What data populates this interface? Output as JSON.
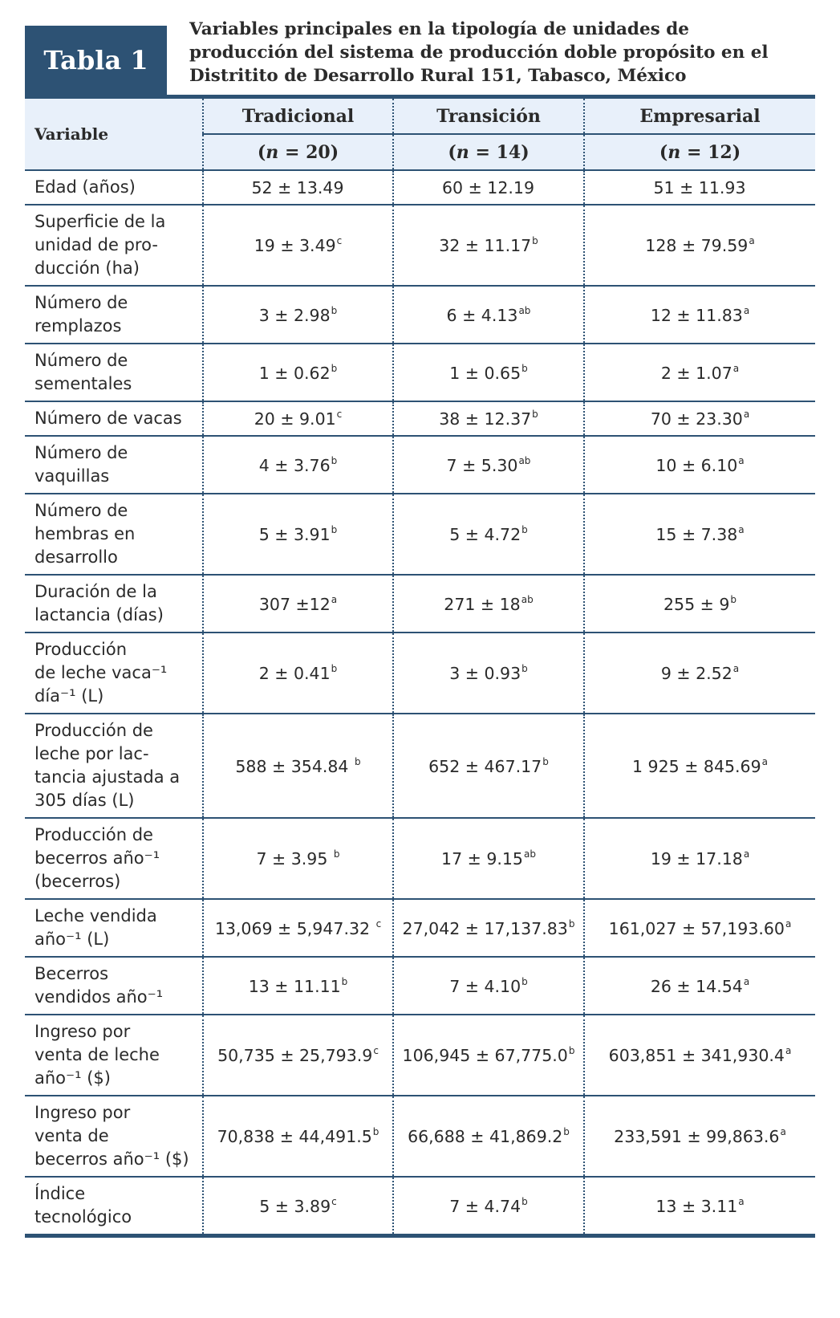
{
  "table_label": "Tabla 1",
  "caption_lines": [
    "Variables principales en la tipología de unidades de",
    "producción del sistema de producción doble propósito en el",
    "Distritito de Desarrollo Rural 151, Tabasco, México"
  ],
  "header": {
    "variable": "Variable",
    "groups": [
      {
        "name": "Tradicional",
        "n": "20"
      },
      {
        "name": "Transición",
        "n": "14"
      },
      {
        "name": "Empresarial",
        "n": "12"
      }
    ]
  },
  "rows": [
    {
      "lines": [
        "Edad (años)"
      ],
      "vals": [
        [
          "52 ± 13.49",
          ""
        ],
        [
          "60 ± 12.19",
          ""
        ],
        [
          "51 ± 11.93",
          ""
        ]
      ]
    },
    {
      "lines": [
        "Superficie de la",
        "unidad de pro-",
        "ducción (ha)"
      ],
      "vals": [
        [
          "19 ± 3.49",
          "c"
        ],
        [
          "32 ± 11.17",
          "b"
        ],
        [
          "128 ± 79.59",
          "a"
        ]
      ]
    },
    {
      "lines": [
        "Número de",
        "remplazos"
      ],
      "vals": [
        [
          "3 ± 2.98",
          "b"
        ],
        [
          "6 ± 4.13",
          "ab"
        ],
        [
          "12 ± 11.83",
          "a"
        ]
      ]
    },
    {
      "lines": [
        "Número de",
        "sementales"
      ],
      "vals": [
        [
          "1 ± 0.62",
          "b"
        ],
        [
          "1 ± 0.65",
          "b"
        ],
        [
          "2 ± 1.07",
          "a"
        ]
      ]
    },
    {
      "lines": [
        "Número de vacas"
      ],
      "vals": [
        [
          "20 ± 9.01",
          "c"
        ],
        [
          "38 ± 12.37",
          "b"
        ],
        [
          "70 ± 23.30",
          "a"
        ]
      ]
    },
    {
      "lines": [
        "Número de",
        "vaquillas"
      ],
      "vals": [
        [
          "4 ± 3.76",
          "b"
        ],
        [
          "7 ± 5.30",
          "ab"
        ],
        [
          "10 ± 6.10",
          "a"
        ]
      ]
    },
    {
      "lines": [
        "Número de",
        "hembras en",
        "desarrollo"
      ],
      "vals": [
        [
          "5 ± 3.91",
          "b"
        ],
        [
          "5 ± 4.72",
          "b"
        ],
        [
          "15 ± 7.38",
          "a"
        ]
      ]
    },
    {
      "lines": [
        "Duración de la",
        "lactancia (días)"
      ],
      "vals": [
        [
          "307 ±12",
          "a"
        ],
        [
          "271 ± 18",
          "ab"
        ],
        [
          "255 ± 9",
          "b"
        ]
      ]
    },
    {
      "lines": [
        "Producción",
        "de leche vaca⁻¹",
        "día⁻¹ (L)"
      ],
      "vals": [
        [
          "2 ± 0.41",
          "b"
        ],
        [
          "3 ± 0.93",
          "b"
        ],
        [
          "9 ± 2.52",
          "a"
        ]
      ]
    },
    {
      "lines": [
        "Producción de",
        "leche por lac-",
        "tancia ajustada a",
        "305 días (L)"
      ],
      "vals": [
        [
          "588 ± 354.84 ",
          "b"
        ],
        [
          "652 ± 467.17",
          "b"
        ],
        [
          "1 925 ± 845.69",
          "a"
        ]
      ]
    },
    {
      "lines": [
        "Producción de",
        "becerros año⁻¹",
        "(becerros)"
      ],
      "vals": [
        [
          "7 ± 3.95 ",
          "b"
        ],
        [
          "17 ± 9.15",
          "ab"
        ],
        [
          "19 ± 17.18",
          "a"
        ]
      ]
    },
    {
      "lines": [
        "Leche vendida",
        "año⁻¹ (L)"
      ],
      "vals": [
        [
          "13,069 ± 5,947.32 ",
          "c"
        ],
        [
          "27,042 ± 17,137.83",
          "b"
        ],
        [
          "161,027 ± 57,193.60",
          "a"
        ]
      ]
    },
    {
      "lines": [
        "Becerros",
        "vendidos año⁻¹"
      ],
      "vals": [
        [
          "13 ± 11.11",
          "b"
        ],
        [
          "7 ± 4.10",
          "b"
        ],
        [
          "26 ± 14.54",
          "a"
        ]
      ]
    },
    {
      "lines": [
        "Ingreso por",
        "venta de leche",
        "año⁻¹ ($)"
      ],
      "vals": [
        [
          "50,735 ± 25,793.9",
          "c"
        ],
        [
          "106,945 ± 67,775.0",
          "b"
        ],
        [
          "603,851 ± 341,930.4",
          "a"
        ]
      ]
    },
    {
      "lines": [
        "Ingreso por",
        "venta de",
        "becerros año⁻¹ ($)"
      ],
      "vals": [
        [
          "70,838 ± 44,491.5",
          "b"
        ],
        [
          "66,688 ± 41,869.2",
          "b"
        ],
        [
          "233,591 ± 99,863.6",
          "a"
        ]
      ]
    },
    {
      "lines": [
        "Índice",
        "tecnológico"
      ],
      "vals": [
        [
          "5 ± 3.89",
          "c"
        ],
        [
          "7 ± 4.74",
          "b"
        ],
        [
          "13 ± 3.11",
          "a"
        ]
      ]
    }
  ],
  "colors": {
    "accent": "#2d5274",
    "header_bg": "#e8f0fa"
  }
}
